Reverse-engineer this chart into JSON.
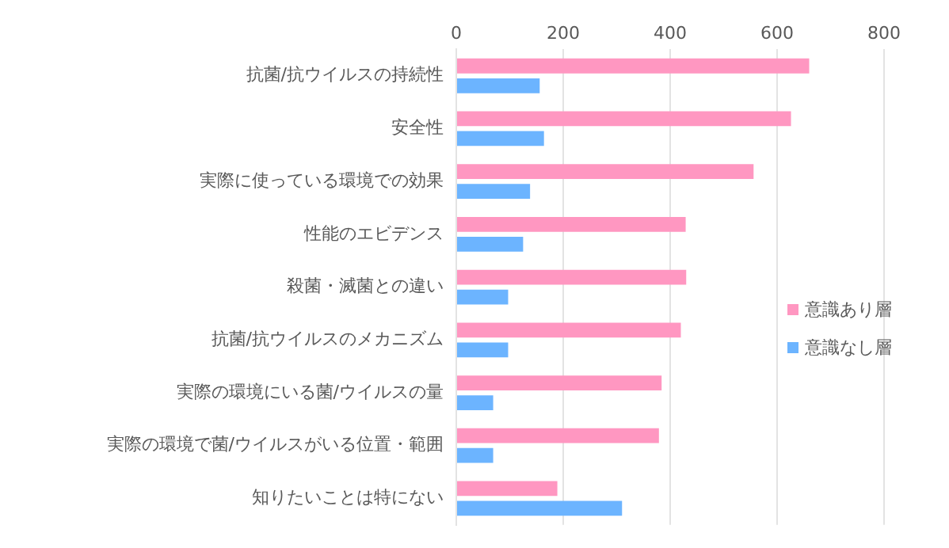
{
  "chart_data": {
    "type": "bar",
    "orientation": "horizontal",
    "categories": [
      "抗菌/抗ウイルスの持続性",
      "安全性",
      "実際に使っている環境での効果",
      "性能のエビデンス",
      "殺菌・滅菌との違い",
      "抗菌/抗ウイルスのメカニズム",
      "実際の環境にいる菌/ウイルスの量",
      "実際の環境で菌/ウイルスがいる位置・範囲",
      "知りたいことは特にない"
    ],
    "series": [
      {
        "name": "意識あり層",
        "color": "#ff97c1",
        "values": [
          660,
          626,
          556,
          429,
          430,
          420,
          384,
          379,
          189
        ]
      },
      {
        "name": "意識なし層",
        "color": "#6cb4ff",
        "values": [
          156,
          164,
          138,
          125,
          97,
          97,
          69,
          69,
          310
        ]
      }
    ],
    "xlim": [
      0,
      800
    ],
    "xticks": [
      0,
      200,
      400,
      600,
      800
    ],
    "grid": "x",
    "legend": "right"
  }
}
